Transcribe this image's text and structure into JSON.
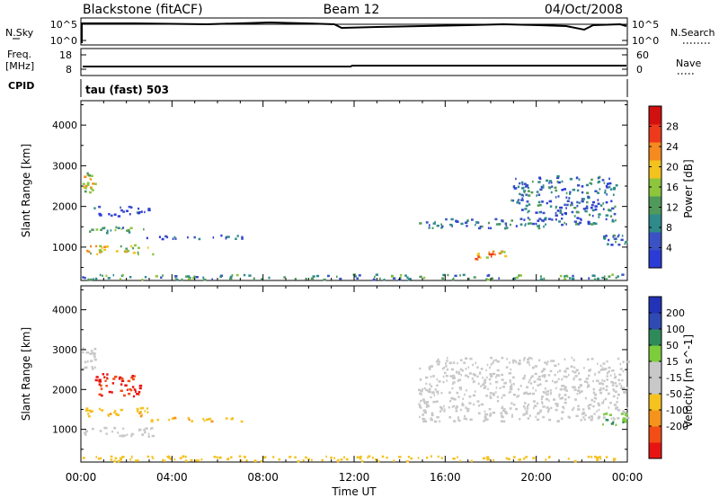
{
  "header": {
    "title": "Blackstone (fitACF)",
    "beam": "Beam 12",
    "date": "04/Oct/2008"
  },
  "left_labels": {
    "nsky": "N.Sky",
    "freq_line1": "Freq.",
    "freq_line2": "[MHz]",
    "cpid": "CPID"
  },
  "right_labels": {
    "nsearch": "N.Search",
    "nave": "Nave"
  },
  "noise_panel": {
    "left_ticks": [
      "10^5",
      "10^0"
    ],
    "right_ticks": [
      "10^5",
      "10^0"
    ]
  },
  "freq_panel": {
    "left_ticks": [
      "18",
      "8"
    ],
    "right_ticks": [
      "60",
      "0"
    ]
  },
  "cpid_panel": {
    "text": "tau (fast) 503"
  },
  "x_axis": {
    "label": "Time UT",
    "ticks": [
      "00:00",
      "04:00",
      "08:00",
      "12:00",
      "16:00",
      "20:00",
      "00:00"
    ]
  },
  "colors": {
    "power": [
      "#2b3bd6",
      "#3a52c4",
      "#2f8a8a",
      "#4f9a5a",
      "#8dc53c",
      "#f2c21f",
      "#f58a1f",
      "#ee3a1c",
      "#d11010"
    ],
    "velocity": [
      "#e81414",
      "#f24d14",
      "#f5931c",
      "#f5c21f",
      "#c8c8c8",
      "#c8c8c8",
      "#7ccc3c",
      "#2f8a5a",
      "#2f4ab2",
      "#2233b8"
    ],
    "gray": "#c0c0c0"
  },
  "chart_data": [
    {
      "type": "heatmap",
      "title": "",
      "xlabel": "Time UT",
      "ylabel": "Slant Range [km]",
      "xlim": [
        "00:00",
        "24:00"
      ],
      "ylim": [
        180,
        4600
      ],
      "yticks": [
        "1000",
        "2000",
        "3000",
        "4000"
      ],
      "colorbar": {
        "label": "Power [dB]",
        "range": [
          0,
          32
        ],
        "ticks": [
          "4",
          "8",
          "12",
          "16",
          "20",
          "24",
          "28"
        ]
      },
      "regions": [
        {
          "t": [
            0.0,
            0.6
          ],
          "r": [
            2300,
            2850
          ],
          "value": 20
        },
        {
          "t": [
            0.1,
            3.0
          ],
          "r": [
            1350,
            1500
          ],
          "value": 12
        },
        {
          "t": [
            0.1,
            3.2
          ],
          "r": [
            820,
            1050
          ],
          "value": 18
        },
        {
          "t": [
            0.5,
            3.0
          ],
          "r": [
            1750,
            2000
          ],
          "value": 6
        },
        {
          "t": [
            2.8,
            7.2
          ],
          "r": [
            1200,
            1300
          ],
          "value": 6
        },
        {
          "t": [
            0.0,
            24.0
          ],
          "r": [
            200,
            330
          ],
          "value": 14
        },
        {
          "t": [
            14.8,
            20.5
          ],
          "r": [
            1450,
            1700
          ],
          "value": 10
        },
        {
          "t": [
            18.8,
            23.5
          ],
          "r": [
            1550,
            2750
          ],
          "value": 8
        },
        {
          "t": [
            17.3,
            18.8
          ],
          "r": [
            700,
            900
          ],
          "value": 22
        },
        {
          "t": [
            22.8,
            24.0
          ],
          "r": [
            1050,
            1300
          ],
          "value": 10
        }
      ]
    },
    {
      "type": "heatmap",
      "title": "",
      "xlabel": "Time UT",
      "ylabel": "Slant Range [km]",
      "xlim": [
        "00:00",
        "24:00"
      ],
      "ylim": [
        180,
        4600
      ],
      "yticks": [
        "1000",
        "2000",
        "3000",
        "4000"
      ],
      "colorbar": {
        "label": "Velocity [m s^-1]",
        "ticks": [
          "200",
          "100",
          "50",
          "15",
          "-15",
          "-50",
          "-100",
          "-200"
        ]
      },
      "regions": [
        {
          "t": [
            0.0,
            0.6
          ],
          "r": [
            2500,
            3050
          ],
          "value": 0
        },
        {
          "t": [
            0.6,
            2.6
          ],
          "r": [
            1800,
            2400
          ],
          "value": -200
        },
        {
          "t": [
            0.1,
            3.0
          ],
          "r": [
            1300,
            1550
          ],
          "value": -40
        },
        {
          "t": [
            0.1,
            3.2
          ],
          "r": [
            800,
            1050
          ],
          "value": 0
        },
        {
          "t": [
            3.0,
            7.2
          ],
          "r": [
            1200,
            1300
          ],
          "value": -40
        },
        {
          "t": [
            0.0,
            24.0
          ],
          "r": [
            200,
            330
          ],
          "value": -30
        },
        {
          "t": [
            14.8,
            24.0
          ],
          "r": [
            1200,
            2800
          ],
          "value": 0
        },
        {
          "t": [
            22.8,
            24.0
          ],
          "r": [
            1100,
            1400
          ],
          "value": 40
        }
      ]
    }
  ]
}
